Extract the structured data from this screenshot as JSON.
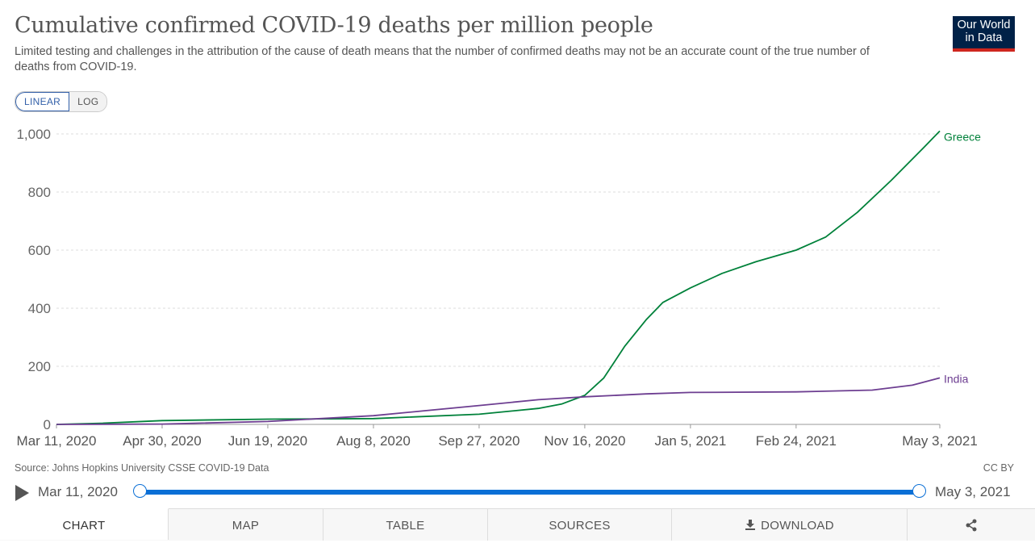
{
  "header": {
    "title": "Cumulative confirmed COVID-19 deaths per million people",
    "subtitle": "Limited testing and challenges in the attribution of the cause of death means that the number of confirmed deaths may not be an accurate count of the true number of deaths from COVID-19.",
    "logo_line1": "Our World",
    "logo_line2": "in Data"
  },
  "scale_toggle": {
    "linear": "LINEAR",
    "log": "LOG",
    "active": "linear"
  },
  "chart_data": {
    "type": "line",
    "title": "Cumulative confirmed COVID-19 deaths per million people",
    "xlabel": "",
    "ylabel": "",
    "x_ticks": [
      "Mar 11, 2020",
      "Apr 30, 2020",
      "Jun 19, 2020",
      "Aug 8, 2020",
      "Sep 27, 2020",
      "Nov 16, 2020",
      "Jan 5, 2021",
      "Feb 24, 2021",
      "May 3, 2021"
    ],
    "xlim": [
      "2020-03-11",
      "2021-05-03"
    ],
    "y_ticks": [
      0,
      200,
      400,
      600,
      800,
      1000
    ],
    "y_tick_labels": [
      "0",
      "200",
      "400",
      "600",
      "800",
      "1,000"
    ],
    "ylim": [
      0,
      1000
    ],
    "grid": "horizontal dashed",
    "series": [
      {
        "name": "Greece",
        "color": "#00813a",
        "points": [
          [
            "2020-03-11",
            0
          ],
          [
            "2020-04-01",
            4
          ],
          [
            "2020-04-30",
            13
          ],
          [
            "2020-06-19",
            18
          ],
          [
            "2020-08-08",
            20
          ],
          [
            "2020-09-27",
            35
          ],
          [
            "2020-10-25",
            55
          ],
          [
            "2020-11-05",
            70
          ],
          [
            "2020-11-16",
            100
          ],
          [
            "2020-11-25",
            160
          ],
          [
            "2020-12-05",
            270
          ],
          [
            "2020-12-15",
            360
          ],
          [
            "2020-12-23",
            420
          ],
          [
            "2021-01-05",
            470
          ],
          [
            "2021-01-20",
            520
          ],
          [
            "2021-02-05",
            560
          ],
          [
            "2021-02-24",
            600
          ],
          [
            "2021-03-10",
            645
          ],
          [
            "2021-03-25",
            730
          ],
          [
            "2021-04-10",
            840
          ],
          [
            "2021-04-25",
            950
          ],
          [
            "2021-05-03",
            1010
          ]
        ]
      },
      {
        "name": "India",
        "color": "#6d3e91",
        "points": [
          [
            "2020-03-11",
            0
          ],
          [
            "2020-04-30",
            1
          ],
          [
            "2020-06-19",
            10
          ],
          [
            "2020-08-08",
            30
          ],
          [
            "2020-09-27",
            65
          ],
          [
            "2020-10-25",
            85
          ],
          [
            "2020-11-16",
            95
          ],
          [
            "2020-12-15",
            105
          ],
          [
            "2021-01-05",
            110
          ],
          [
            "2021-02-24",
            112
          ],
          [
            "2021-04-01",
            118
          ],
          [
            "2021-04-20",
            135
          ],
          [
            "2021-05-03",
            160
          ]
        ]
      }
    ],
    "legend": "inline labels at line ends"
  },
  "footer": {
    "source": "Source: Johns Hopkins University CSSE COVID-19 Data",
    "license": "CC BY"
  },
  "timeline": {
    "start_label": "Mar 11, 2020",
    "end_label": "May 3, 2021",
    "selection": [
      0,
      1
    ]
  },
  "tabs": [
    {
      "label": "CHART",
      "active": true
    },
    {
      "label": "MAP"
    },
    {
      "label": "TABLE"
    },
    {
      "label": "SOURCES"
    },
    {
      "label": "DOWNLOAD",
      "icon": "download-icon"
    },
    {
      "label": "",
      "icon": "share-icon"
    }
  ]
}
